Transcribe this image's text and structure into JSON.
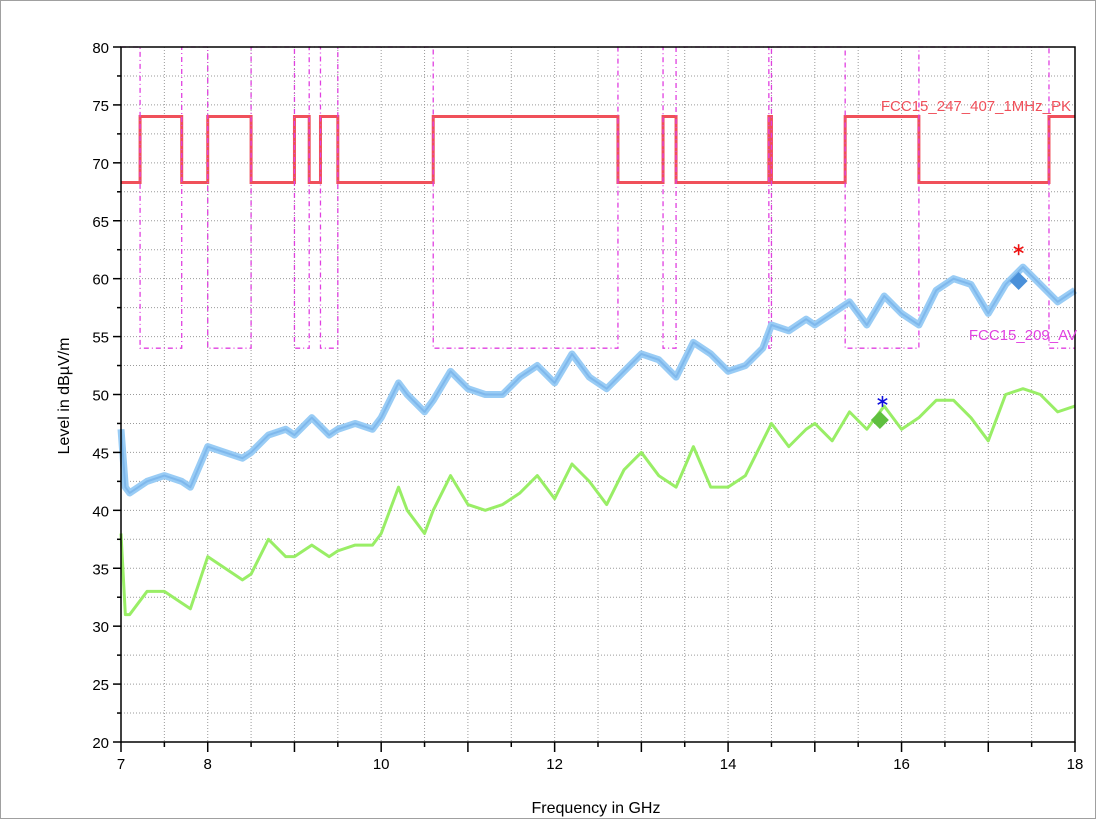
{
  "chart_data": {
    "type": "line",
    "xlabel": "Frequency in GHz",
    "ylabel": "Level in dBµV/m",
    "xlim": [
      7,
      18
    ],
    "ylim": [
      20,
      80
    ],
    "x_ticks": [
      "7",
      "8",
      "10",
      "12",
      "14",
      "16",
      "18"
    ],
    "x_tick_values": [
      7,
      8,
      10,
      12,
      14,
      16,
      18
    ],
    "y_ticks": [
      "20",
      "25",
      "30",
      "35",
      "40",
      "45",
      "50",
      "55",
      "60",
      "65",
      "70",
      "75",
      "80"
    ],
    "y_tick_values": [
      20,
      25,
      30,
      35,
      40,
      45,
      50,
      55,
      60,
      65,
      70,
      75,
      80
    ],
    "grid": true,
    "colors": {
      "pk_limit": "#f0505a",
      "av_limit": "#e040e0",
      "peak_trace": "#99ccf5",
      "avg_trace": "#99ee66",
      "peak_marker": "#4a90d9",
      "avg_marker": "#5fbf3f",
      "peak_star": "#ee1111",
      "avg_star": "#1111dd"
    },
    "limit_lines": [
      {
        "name": "FCC15_247_407_1MHz_PK",
        "levels": [
          68.3,
          74
        ],
        "x": [
          7,
          7.22,
          7.22,
          7.7,
          7.7,
          8.0,
          8.0,
          8.5,
          8.5,
          9.0,
          9.0,
          9.17,
          9.17,
          9.3,
          9.3,
          9.5,
          9.5,
          10.6,
          10.6,
          12.73,
          12.73,
          13.25,
          13.25,
          13.4,
          13.4,
          14.47,
          14.47,
          14.5,
          14.5,
          15.35,
          15.35,
          16.2,
          16.2,
          17.7,
          17.7,
          18
        ],
        "y": [
          68.3,
          68.3,
          74,
          74,
          68.3,
          68.3,
          74,
          74,
          68.3,
          68.3,
          74,
          74,
          68.3,
          68.3,
          74,
          74,
          68.3,
          68.3,
          74,
          74,
          68.3,
          68.3,
          74,
          74,
          68.3,
          68.3,
          74,
          74,
          68.3,
          68.3,
          74,
          74,
          68.3,
          68.3,
          74,
          74
        ]
      },
      {
        "name": "FCC15_209_AV",
        "levels": [
          54,
          80
        ],
        "x": [
          7,
          7.22,
          7.22,
          7.7,
          7.7,
          8.0,
          8.0,
          8.5,
          8.5,
          9.0,
          9.0,
          9.17,
          9.17,
          9.3,
          9.3,
          9.5,
          9.5,
          10.6,
          10.6,
          12.73,
          12.73,
          13.25,
          13.25,
          13.4,
          13.4,
          14.47,
          14.47,
          14.5,
          14.5,
          15.35,
          15.35,
          16.2,
          16.2,
          17.7,
          17.7,
          18
        ],
        "y": [
          80,
          80,
          54,
          54,
          80,
          80,
          54,
          54,
          80,
          80,
          54,
          54,
          80,
          80,
          54,
          54,
          80,
          80,
          54,
          54,
          80,
          80,
          54,
          54,
          80,
          80,
          54,
          54,
          80,
          80,
          54,
          54,
          80,
          80,
          54,
          54
        ]
      }
    ],
    "series": [
      {
        "role": "peak",
        "x": [
          7.0,
          7.05,
          7.1,
          7.3,
          7.5,
          7.7,
          7.8,
          8.0,
          8.2,
          8.4,
          8.5,
          8.7,
          8.9,
          9.0,
          9.2,
          9.4,
          9.5,
          9.7,
          9.9,
          10.0,
          10.2,
          10.3,
          10.5,
          10.6,
          10.8,
          11.0,
          11.2,
          11.4,
          11.6,
          11.8,
          12.0,
          12.2,
          12.4,
          12.6,
          12.8,
          13.0,
          13.2,
          13.4,
          13.6,
          13.8,
          14.0,
          14.2,
          14.4,
          14.5,
          14.7,
          14.9,
          15.0,
          15.2,
          15.4,
          15.6,
          15.8,
          16.0,
          16.2,
          16.4,
          16.6,
          16.8,
          17.0,
          17.2,
          17.4,
          17.6,
          17.8,
          18.0
        ],
        "y": [
          47,
          42,
          41.5,
          42.5,
          43,
          42.5,
          42,
          45.5,
          45,
          44.5,
          45,
          46.5,
          47,
          46.5,
          48,
          46.5,
          47,
          47.5,
          47,
          48,
          51,
          50,
          48.5,
          49.5,
          52,
          50.5,
          50,
          50,
          51.5,
          52.5,
          51,
          53.5,
          51.5,
          50.5,
          52,
          53.5,
          53,
          51.5,
          54.5,
          53.5,
          52,
          52.5,
          54,
          56,
          55.5,
          56.5,
          56,
          57,
          58,
          56,
          58.5,
          57,
          56,
          59,
          60,
          59.5,
          57,
          59.5,
          61,
          59.5,
          58,
          59
        ]
      },
      {
        "role": "average",
        "x": [
          7.0,
          7.05,
          7.1,
          7.3,
          7.5,
          7.7,
          7.8,
          8.0,
          8.2,
          8.4,
          8.5,
          8.7,
          8.9,
          9.0,
          9.2,
          9.4,
          9.5,
          9.7,
          9.9,
          10.0,
          10.2,
          10.3,
          10.5,
          10.6,
          10.8,
          11.0,
          11.2,
          11.4,
          11.6,
          11.8,
          12.0,
          12.2,
          12.4,
          12.6,
          12.8,
          13.0,
          13.2,
          13.4,
          13.6,
          13.8,
          14.0,
          14.2,
          14.4,
          14.5,
          14.7,
          14.9,
          15.0,
          15.2,
          15.4,
          15.6,
          15.8,
          16.0,
          16.2,
          16.4,
          16.6,
          16.8,
          17.0,
          17.2,
          17.4,
          17.6,
          17.8,
          18.0
        ],
        "y": [
          38,
          31,
          31,
          33,
          33,
          32,
          31.5,
          36,
          35,
          34,
          34.5,
          37.5,
          36,
          36,
          37,
          36,
          36.5,
          37,
          37,
          38,
          42,
          40,
          38,
          40,
          43,
          40.5,
          40,
          40.5,
          41.5,
          43,
          41,
          44,
          42.5,
          40.5,
          43.5,
          45,
          43,
          42,
          45.5,
          42,
          42,
          43,
          46,
          47.5,
          45.5,
          47,
          47.5,
          46,
          48.5,
          47,
          49,
          47,
          48,
          49.5,
          49.5,
          48,
          46,
          50,
          50.5,
          50,
          48.5,
          49
        ]
      }
    ],
    "markers": [
      {
        "type": "diamond",
        "role": "peak",
        "x": 17.35,
        "y": 59.8
      },
      {
        "type": "star",
        "role": "peak",
        "x": 17.35,
        "y": 62.5
      },
      {
        "type": "diamond",
        "role": "average",
        "x": 15.75,
        "y": 47.8
      },
      {
        "type": "star",
        "role": "average",
        "x": 15.78,
        "y": 49.4
      }
    ]
  }
}
